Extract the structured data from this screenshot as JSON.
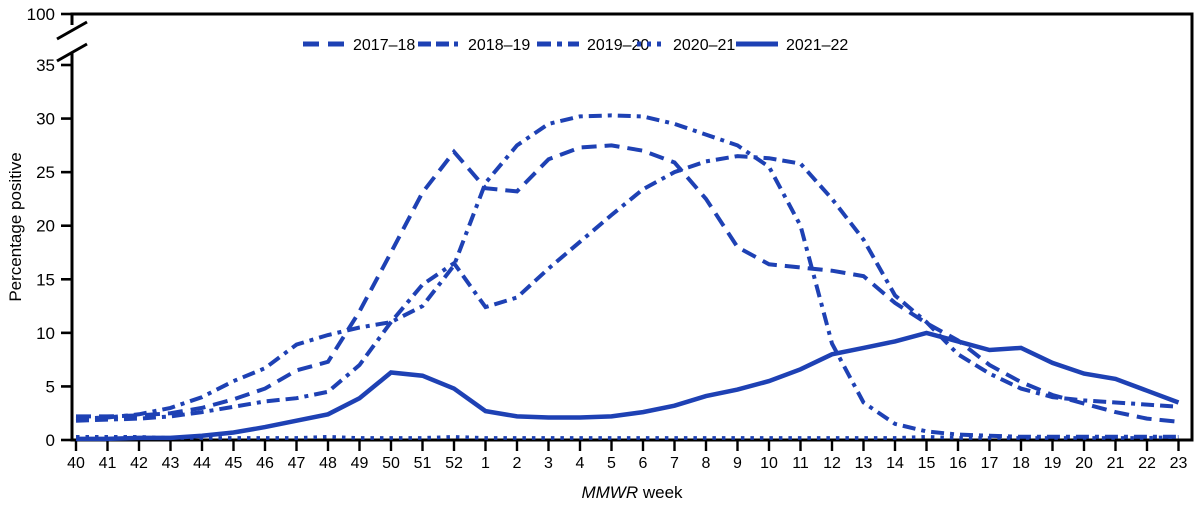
{
  "chart_data": {
    "type": "line",
    "title": "",
    "xlabel_italic": "MMWR",
    "xlabel_rest": " week",
    "ylabel": "Percentage positive",
    "y_ticks": [
      0,
      5,
      10,
      15,
      20,
      25,
      30,
      35
    ],
    "y_axis_break_top_label": "100",
    "ylim": [
      0,
      35
    ],
    "grid": false,
    "legend_position": "top",
    "line_color": "#1e41b4",
    "axis_color": "#000000",
    "weeks": [
      "40",
      "41",
      "42",
      "43",
      "44",
      "45",
      "46",
      "47",
      "48",
      "49",
      "50",
      "51",
      "52",
      "1",
      "2",
      "3",
      "4",
      "5",
      "6",
      "7",
      "8",
      "9",
      "10",
      "11",
      "12",
      "13",
      "14",
      "15",
      "16",
      "17",
      "18",
      "19",
      "20",
      "21",
      "22",
      "23"
    ],
    "series": [
      {
        "name": "2017–18",
        "dash": "dash",
        "values": [
          2.2,
          2.2,
          2.3,
          2.5,
          3.0,
          3.8,
          4.8,
          6.5,
          7.3,
          12.0,
          17.5,
          23.1,
          26.9,
          23.5,
          23.2,
          26.2,
          27.3,
          27.5,
          27.0,
          25.9,
          22.5,
          18.0,
          16.4,
          16.1,
          15.8,
          15.3,
          12.8,
          10.9,
          9.3,
          7.0,
          5.4,
          4.2,
          3.4,
          2.6,
          2.0,
          1.7
        ]
      },
      {
        "name": "2018–19",
        "dash": "dash-dash-dot",
        "values": [
          1.8,
          1.9,
          2.0,
          2.2,
          2.6,
          3.1,
          3.6,
          3.9,
          4.5,
          7.0,
          11.0,
          14.5,
          16.5,
          12.4,
          13.3,
          16.0,
          18.5,
          21.0,
          23.4,
          25.0,
          26.0,
          26.5,
          26.3,
          25.8,
          22.5,
          18.7,
          13.5,
          11.0,
          8.0,
          6.2,
          4.8,
          4.0,
          3.7,
          3.5,
          3.3,
          3.1
        ]
      },
      {
        "name": "2019–20",
        "dash": "dash-dot",
        "values": [
          2.0,
          2.1,
          2.4,
          3.0,
          4.0,
          5.5,
          6.7,
          8.9,
          9.8,
          10.5,
          11.0,
          12.5,
          16.3,
          24.0,
          27.5,
          29.5,
          30.2,
          30.3,
          30.2,
          29.5,
          28.5,
          27.5,
          25.5,
          20.0,
          9.0,
          3.5,
          1.5,
          0.8,
          0.5,
          0.4,
          0.3,
          0.3,
          0.3,
          0.3,
          0.3,
          0.3
        ]
      },
      {
        "name": "2020–21",
        "dash": "dot",
        "values": [
          0.3,
          0.3,
          0.3,
          0.2,
          0.2,
          0.2,
          0.2,
          0.2,
          0.3,
          0.2,
          0.2,
          0.2,
          0.3,
          0.2,
          0.2,
          0.2,
          0.2,
          0.2,
          0.2,
          0.2,
          0.2,
          0.2,
          0.2,
          0.2,
          0.2,
          0.2,
          0.2,
          0.3,
          0.2,
          0.2,
          0.2,
          0.2,
          0.2,
          0.2,
          0.2,
          0.3
        ]
      },
      {
        "name": "2021–22",
        "dash": "solid",
        "values": [
          0.1,
          0.1,
          0.2,
          0.2,
          0.4,
          0.7,
          1.2,
          1.8,
          2.4,
          3.9,
          6.3,
          6.0,
          4.8,
          2.7,
          2.2,
          2.1,
          2.1,
          2.2,
          2.6,
          3.2,
          4.1,
          4.7,
          5.5,
          6.6,
          8.0,
          8.6,
          9.2,
          10.0,
          9.2,
          8.4,
          8.6,
          7.2,
          6.2,
          5.7,
          4.6,
          3.5
        ]
      }
    ]
  }
}
